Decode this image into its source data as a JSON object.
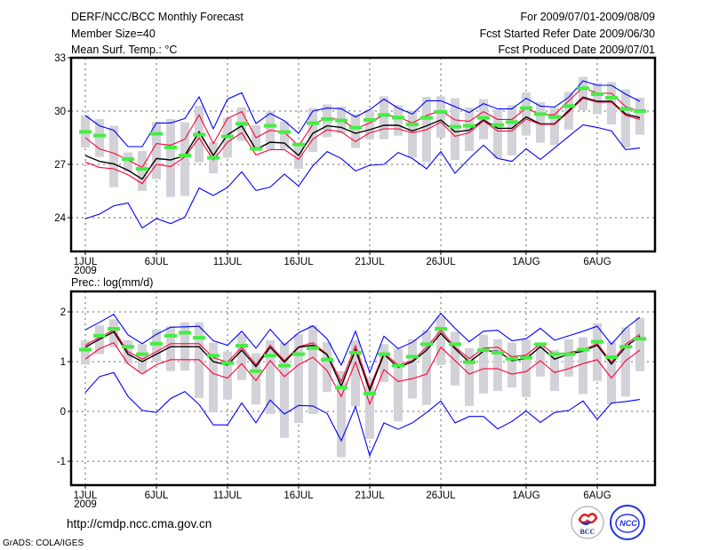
{
  "header": {
    "title": "DERF/NCC/BCC Monthly Forecast",
    "member_size": "Member Size=40",
    "period": "For 2009/07/01-2009/08/09",
    "start_date": "Fcst Started Refer Date 2009/06/30",
    "produced_date": "Fcst Produced Date 2009/07/01"
  },
  "footer": {
    "url": "http://cmdp.ncc.cma.gov.cn",
    "credit": "GrADS: COLA/IGES",
    "logo_bcc": "BCC",
    "logo_ncc": "NCC"
  },
  "colors": {
    "max_min": "#0000ff",
    "spread": "#ff0033",
    "mean": "#000000",
    "observed": "#44ee44",
    "box": "#d2d2d8"
  },
  "chart_data": [
    {
      "type": "line",
      "title": "Mean Surf. Temp.: °C",
      "xlabel": "",
      "ylabel": "",
      "ylim": [
        22.1,
        33
      ],
      "yticks": [
        24,
        27,
        30,
        33
      ],
      "x": "day 1..40 (2009/07/01 - 2009/08/09)",
      "xticks": [
        {
          "day": 1,
          "label": "1JUL",
          "sub": "2009"
        },
        {
          "day": 6,
          "label": "6JUL"
        },
        {
          "day": 11,
          "label": "11JUL"
        },
        {
          "day": 16,
          "label": "16JUL"
        },
        {
          "day": 21,
          "label": "21JUL"
        },
        {
          "day": 26,
          "label": "26JUL"
        },
        {
          "day": 32,
          "label": "1AUG"
        },
        {
          "day": 37,
          "label": "6AUG"
        }
      ],
      "grid": true,
      "series": [
        {
          "name": "max",
          "values": [
            29.75,
            29.17,
            28.92,
            28.0,
            28.0,
            29.33,
            29.33,
            29.58,
            30.8,
            29.0,
            30.67,
            31.03,
            29.3,
            29.87,
            29.45,
            28.75,
            30.0,
            30.17,
            30.13,
            29.67,
            30.08,
            30.67,
            30.17,
            29.83,
            30.58,
            30.58,
            30.25,
            29.92,
            30.42,
            30.12,
            30.12,
            30.72,
            30.28,
            30.22,
            30.78,
            31.7,
            31.45,
            31.45,
            30.95,
            30.55
          ]
        },
        {
          "name": "upper",
          "values": [
            28.5,
            27.87,
            27.63,
            27.25,
            26.83,
            28.17,
            28.08,
            28.42,
            29.78,
            28.17,
            29.58,
            29.97,
            28.5,
            28.92,
            28.8,
            28.05,
            29.25,
            29.62,
            29.5,
            29.0,
            29.33,
            29.8,
            29.67,
            29.33,
            29.75,
            30.03,
            29.5,
            29.42,
            29.97,
            29.53,
            29.53,
            30.17,
            29.8,
            29.8,
            30.58,
            31.33,
            31.0,
            31.0,
            30.25,
            29.97
          ]
        },
        {
          "name": "mean",
          "values": [
            27.5,
            27.17,
            27.03,
            26.67,
            26.17,
            27.33,
            27.25,
            27.5,
            28.83,
            27.5,
            28.67,
            29.17,
            27.83,
            28.25,
            28.2,
            27.5,
            28.75,
            29.17,
            29.08,
            28.75,
            28.95,
            29.2,
            29.2,
            28.88,
            29.17,
            29.5,
            28.83,
            28.92,
            29.5,
            29.03,
            29.03,
            29.67,
            29.28,
            29.28,
            30.03,
            30.78,
            30.55,
            30.55,
            29.83,
            29.63
          ]
        },
        {
          "name": "lower",
          "values": [
            27.13,
            26.83,
            26.75,
            26.42,
            25.92,
            27.0,
            26.88,
            27.42,
            28.5,
            27.25,
            28.25,
            28.78,
            27.53,
            27.83,
            27.83,
            27.28,
            28.42,
            28.95,
            28.83,
            28.28,
            28.78,
            29.0,
            29.0,
            28.78,
            28.95,
            29.38,
            28.58,
            28.78,
            29.45,
            28.88,
            28.88,
            29.55,
            29.25,
            29.25,
            29.95,
            30.72,
            30.5,
            30.5,
            29.75,
            29.53
          ]
        },
        {
          "name": "min",
          "values": [
            23.95,
            24.2,
            24.67,
            24.83,
            23.42,
            23.95,
            23.67,
            24.03,
            25.67,
            25.25,
            25.7,
            26.58,
            25.53,
            25.72,
            26.45,
            25.78,
            26.92,
            27.72,
            27.33,
            26.63,
            26.95,
            27.0,
            27.67,
            27.33,
            26.75,
            27.72,
            26.5,
            27.33,
            28.08,
            27.33,
            27.17,
            27.88,
            27.28,
            27.92,
            28.58,
            29.22,
            29.08,
            28.88,
            27.83,
            27.92
          ]
        },
        {
          "name": "observed",
          "values": [
            28.83,
            28.62,
            null,
            27.3,
            26.75,
            28.72,
            27.95,
            27.5,
            28.67,
            27.37,
            28.57,
            29.28,
            27.87,
            29.17,
            28.82,
            28.12,
            29.32,
            29.55,
            29.47,
            29.07,
            29.5,
            29.78,
            29.63,
            29.25,
            29.62,
            29.95,
            29.12,
            29.17,
            29.62,
            29.22,
            29.38,
            30.17,
            29.83,
            29.67,
            30.28,
            31.28,
            30.95,
            30.75,
            30.12,
            30.0
          ]
        }
      ],
      "boxes": [
        [
          29.78,
          27.95
        ],
        [
          29.55,
          27.42
        ],
        [
          29.17,
          25.72
        ],
        [
          27.67,
          26.58
        ],
        [
          27.75,
          25.5
        ],
        [
          29.37,
          26.17
        ],
        [
          29.55,
          25.17
        ],
        [
          29.37,
          25.22
        ],
        [
          30.3,
          27.12
        ],
        [
          28.25,
          26.5
        ],
        [
          29.62,
          27.37
        ],
        [
          30.2,
          28.32
        ],
        [
          29.2,
          27.83
        ],
        [
          30.0,
          27.83
        ],
        [
          29.42,
          27.87
        ],
        [
          28.2,
          26.75
        ],
        [
          30.17,
          27.7
        ],
        [
          30.37,
          28.53
        ],
        [
          30.25,
          28.75
        ],
        [
          29.83,
          27.92
        ],
        [
          30.08,
          28.42
        ],
        [
          30.83,
          28.42
        ],
        [
          30.33,
          28.62
        ],
        [
          30.03,
          27.38
        ],
        [
          30.8,
          27.12
        ],
        [
          30.83,
          28.5
        ],
        [
          30.72,
          27.25
        ],
        [
          30.2,
          27.75
        ],
        [
          30.67,
          28.42
        ],
        [
          30.08,
          27.33
        ],
        [
          30.33,
          27.5
        ],
        [
          31.05,
          28.62
        ],
        [
          30.5,
          28.22
        ],
        [
          30.17,
          28.08
        ],
        [
          31.08,
          28.95
        ],
        [
          31.92,
          30.05
        ],
        [
          31.58,
          29.83
        ],
        [
          31.63,
          29.25
        ],
        [
          31.22,
          27.95
        ],
        [
          30.75,
          28.67
        ]
      ]
    },
    {
      "type": "line",
      "title": "Prec.: log(mm/d)",
      "xlabel": "",
      "ylabel": "",
      "ylim": [
        -1.48,
        2.41
      ],
      "yticks": [
        -1,
        0,
        1,
        2
      ],
      "x": "day 1..40 (2009/07/01 - 2009/08/09)",
      "xticks": [
        {
          "day": 1,
          "label": "1JUL",
          "sub": "2009"
        },
        {
          "day": 6,
          "label": "6JUL"
        },
        {
          "day": 11,
          "label": "11JUL"
        },
        {
          "day": 16,
          "label": "16JUL"
        },
        {
          "day": 21,
          "label": "21JUL"
        },
        {
          "day": 26,
          "label": "26JUL"
        },
        {
          "day": 32,
          "label": "1AUG"
        },
        {
          "day": 37,
          "label": "6AUG"
        }
      ],
      "grid": true,
      "series": [
        {
          "name": "max",
          "values": [
            1.64,
            1.79,
            1.95,
            1.54,
            1.36,
            1.55,
            1.69,
            1.7,
            1.71,
            1.42,
            1.33,
            1.61,
            1.27,
            1.65,
            1.33,
            1.58,
            1.72,
            1.46,
            0.93,
            1.61,
            0.78,
            1.51,
            1.26,
            1.39,
            1.61,
            1.97,
            1.67,
            1.4,
            1.61,
            1.63,
            1.42,
            1.46,
            1.67,
            1.43,
            1.52,
            1.61,
            1.71,
            1.35,
            1.67,
            1.89
          ]
        },
        {
          "name": "upper",
          "values": [
            1.33,
            1.49,
            1.64,
            1.2,
            1.05,
            1.2,
            1.36,
            1.36,
            1.36,
            1.08,
            0.99,
            1.29,
            0.94,
            1.33,
            1.02,
            1.3,
            1.38,
            1.15,
            0.6,
            1.32,
            0.48,
            1.18,
            0.93,
            1.02,
            1.29,
            1.63,
            1.29,
            1.06,
            1.27,
            1.29,
            1.1,
            1.13,
            1.36,
            1.14,
            1.18,
            1.24,
            1.36,
            0.99,
            1.35,
            1.55
          ]
        },
        {
          "name": "mean",
          "values": [
            1.29,
            1.45,
            1.6,
            1.15,
            1.0,
            1.15,
            1.3,
            1.3,
            1.3,
            1.0,
            0.93,
            1.23,
            0.9,
            1.29,
            0.99,
            1.29,
            1.33,
            1.14,
            0.51,
            1.24,
            0.42,
            1.15,
            0.88,
            1.0,
            1.23,
            1.57,
            1.26,
            0.99,
            1.21,
            1.21,
            1.02,
            1.06,
            1.3,
            1.05,
            1.15,
            1.21,
            1.33,
            0.95,
            1.3,
            1.51
          ]
        },
        {
          "name": "lower",
          "values": [
            1.05,
            1.26,
            1.38,
            0.96,
            0.75,
            0.94,
            1.04,
            1.04,
            1.04,
            0.76,
            0.67,
            0.96,
            0.62,
            1.02,
            0.7,
            0.94,
            1.09,
            0.82,
            0.3,
            0.99,
            0.15,
            0.84,
            0.6,
            0.66,
            0.75,
            1.29,
            1.02,
            0.75,
            0.86,
            0.86,
            0.75,
            0.8,
            1.02,
            0.78,
            0.86,
            0.96,
            1.04,
            0.67,
            1.02,
            1.23
          ]
        },
        {
          "name": "min",
          "values": [
            0.38,
            0.7,
            0.78,
            0.3,
            0.02,
            -0.02,
            0.26,
            0.4,
            0.14,
            -0.27,
            -0.27,
            0.17,
            -0.23,
            0.23,
            -0.05,
            0.12,
            0.11,
            -0.04,
            -0.59,
            0.1,
            -0.89,
            -0.23,
            -0.36,
            -0.23,
            -0.02,
            0.21,
            -0.23,
            -0.1,
            -0.1,
            -0.35,
            -0.2,
            0.01,
            -0.22,
            -0.02,
            0.02,
            0.21,
            -0.16,
            0.17,
            0.2,
            0.24
          ]
        },
        {
          "name": "observed",
          "values": [
            1.24,
            1.52,
            1.66,
            1.3,
            1.15,
            1.36,
            1.52,
            1.58,
            1.48,
            1.12,
            0.97,
            1.32,
            0.81,
            1.12,
            0.92,
            1.15,
            1.27,
            1.04,
            0.48,
            1.18,
            0.36,
            1.15,
            0.92,
            1.1,
            1.35,
            1.66,
            1.35,
            0.99,
            1.23,
            1.18,
            1.06,
            1.08,
            1.35,
            1.15,
            1.15,
            1.24,
            1.4,
            1.09,
            1.3,
            1.46
          ]
        }
      ],
      "boxes": [
        [
          1.42,
          0.94
        ],
        [
          1.73,
          1.15
        ],
        [
          1.85,
          1.29
        ],
        [
          1.43,
          0.96
        ],
        [
          1.35,
          0.78
        ],
        [
          1.65,
          1.0
        ],
        [
          1.71,
          0.81
        ],
        [
          1.79,
          0.82
        ],
        [
          1.79,
          0.27
        ],
        [
          1.38,
          -0.02
        ],
        [
          1.2,
          0.24
        ],
        [
          1.55,
          0.63
        ],
        [
          1.17,
          0.14
        ],
        [
          1.43,
          -0.05
        ],
        [
          1.38,
          -0.53
        ],
        [
          1.55,
          -0.23
        ],
        [
          1.73,
          -0.05
        ],
        [
          1.39,
          0.39
        ],
        [
          0.81,
          -0.92
        ],
        [
          1.43,
          0.1
        ],
        [
          0.67,
          -0.55
        ],
        [
          1.35,
          0.59
        ],
        [
          1.26,
          -0.2
        ],
        [
          1.45,
          0.26
        ],
        [
          1.63,
          0.13
        ],
        [
          1.91,
          0.93
        ],
        [
          1.6,
          0.52
        ],
        [
          1.27,
          0.11
        ],
        [
          1.54,
          0.36
        ],
        [
          1.45,
          0.41
        ],
        [
          1.38,
          0.48
        ],
        [
          1.44,
          0.29
        ],
        [
          1.38,
          0.7
        ],
        [
          1.23,
          0.41
        ],
        [
          1.45,
          0.7
        ],
        [
          1.49,
          0.35
        ],
        [
          1.77,
          0.61
        ],
        [
          1.4,
          0.14
        ],
        [
          1.69,
          0.3
        ],
        [
          1.88,
          0.81
        ]
      ]
    }
  ]
}
